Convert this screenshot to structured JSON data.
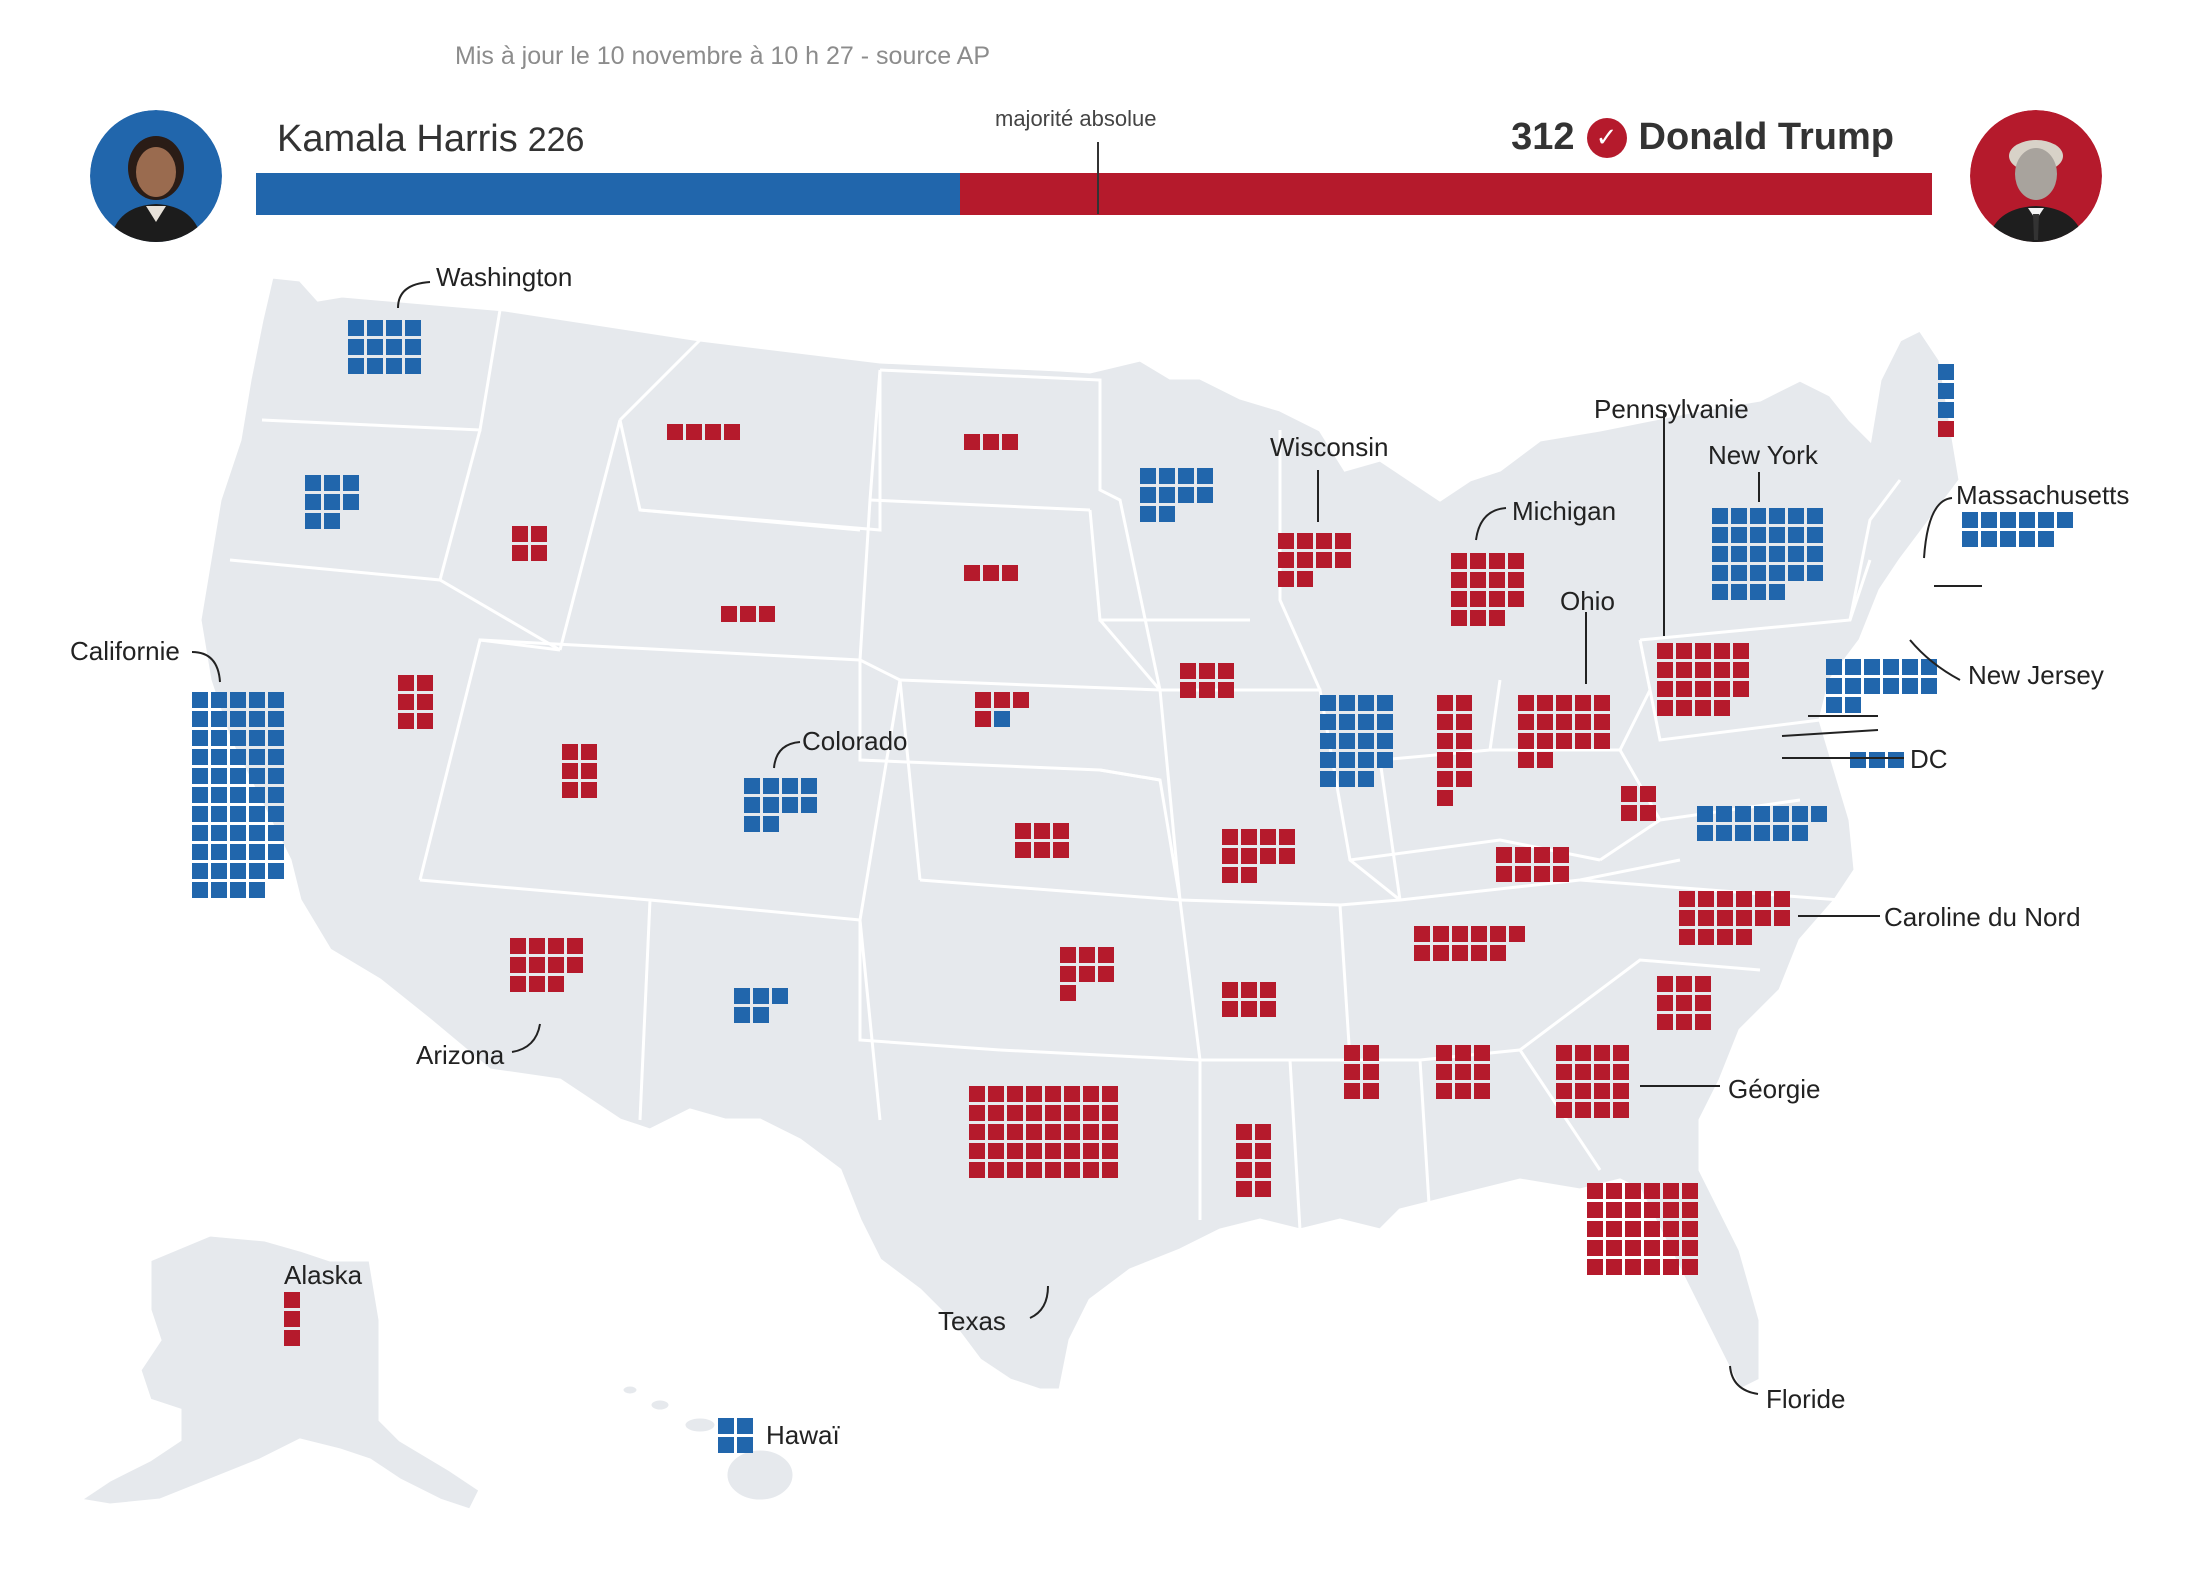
{
  "updated_text": "Mis à jour le 10 novembre à 10 h 27 - source AP",
  "majority_label": "majorité absolue",
  "colors": {
    "democrat": "#2166ac",
    "republican": "#b51a2c",
    "land": "#e6e9ed",
    "border": "#ffffff"
  },
  "candidates": {
    "harris": {
      "name": "Kamala Harris",
      "electoral_votes": "226"
    },
    "trump": {
      "name": "Donald Trump",
      "electoral_votes": "312",
      "winner_icon": "check-circle-icon"
    }
  },
  "results": {
    "harris_votes": 226,
    "trump_votes": 312,
    "total": 538,
    "majority": 270
  },
  "labels": {
    "washington": "Washington",
    "californie": "Californie",
    "colorado": "Colorado",
    "arizona": "Arizona",
    "texas": "Texas",
    "alaska": "Alaska",
    "hawai": "Hawaï",
    "wisconsin": "Wisconsin",
    "michigan": "Michigan",
    "ohio": "Ohio",
    "pennsylvanie": "Pennsylvanie",
    "new_york": "New York",
    "massachusetts": "Massachusetts",
    "new_jersey": "New Jersey",
    "dc": "DC",
    "caroline_du_nord": "Caroline du Nord",
    "georgie": "Géorgie",
    "floride": "Floride"
  },
  "state_results": [
    {
      "state": "Washington",
      "votes": 12,
      "winner": "D"
    },
    {
      "state": "Oregon",
      "votes": 8,
      "winner": "D"
    },
    {
      "state": "Californie",
      "votes": 54,
      "winner": "D"
    },
    {
      "state": "Idaho",
      "votes": 4,
      "winner": "R"
    },
    {
      "state": "Nevada",
      "votes": 6,
      "winner": "R"
    },
    {
      "state": "Montana",
      "votes": 4,
      "winner": "R"
    },
    {
      "state": "Wyoming",
      "votes": 3,
      "winner": "R"
    },
    {
      "state": "Utah",
      "votes": 6,
      "winner": "R"
    },
    {
      "state": "Arizona",
      "votes": 11,
      "winner": "R"
    },
    {
      "state": "Colorado",
      "votes": 10,
      "winner": "D"
    },
    {
      "state": "New Mexico",
      "votes": 5,
      "winner": "D"
    },
    {
      "state": "North Dakota",
      "votes": 3,
      "winner": "R"
    },
    {
      "state": "South Dakota",
      "votes": 3,
      "winner": "R"
    },
    {
      "state": "Nebraska",
      "votes": 5,
      "winner": "R/D",
      "split": {
        "R": 4,
        "D": 1
      }
    },
    {
      "state": "Kansas",
      "votes": 6,
      "winner": "R"
    },
    {
      "state": "Oklahoma",
      "votes": 7,
      "winner": "R"
    },
    {
      "state": "Texas",
      "votes": 40,
      "winner": "R"
    },
    {
      "state": "Minnesota",
      "votes": 10,
      "winner": "D"
    },
    {
      "state": "Iowa",
      "votes": 6,
      "winner": "R"
    },
    {
      "state": "Missouri",
      "votes": 10,
      "winner": "R"
    },
    {
      "state": "Arkansas",
      "votes": 6,
      "winner": "R"
    },
    {
      "state": "Louisiana",
      "votes": 8,
      "winner": "R"
    },
    {
      "state": "Wisconsin",
      "votes": 10,
      "winner": "R"
    },
    {
      "state": "Illinois",
      "votes": 19,
      "winner": "D"
    },
    {
      "state": "Michigan",
      "votes": 15,
      "winner": "R"
    },
    {
      "state": "Indiana",
      "votes": 11,
      "winner": "R"
    },
    {
      "state": "Ohio",
      "votes": 17,
      "winner": "R"
    },
    {
      "state": "Kentucky",
      "votes": 8,
      "winner": "R"
    },
    {
      "state": "Tennessee",
      "votes": 11,
      "winner": "R"
    },
    {
      "state": "Mississippi",
      "votes": 6,
      "winner": "R"
    },
    {
      "state": "Alabama",
      "votes": 9,
      "winner": "R"
    },
    {
      "state": "Géorgie",
      "votes": 16,
      "winner": "R"
    },
    {
      "state": "Floride",
      "votes": 30,
      "winner": "R"
    },
    {
      "state": "Caroline du Sud",
      "votes": 9,
      "winner": "R"
    },
    {
      "state": "Caroline du Nord",
      "votes": 16,
      "winner": "R"
    },
    {
      "state": "Virginie",
      "votes": 13,
      "winner": "D"
    },
    {
      "state": "Virginie-Occidentale",
      "votes": 4,
      "winner": "R"
    },
    {
      "state": "Pennsylvanie",
      "votes": 19,
      "winner": "R"
    },
    {
      "state": "New York",
      "votes": 28,
      "winner": "D"
    },
    {
      "state": "New Jersey",
      "votes": 14,
      "winner": "D"
    },
    {
      "state": "Massachusetts",
      "votes": 11,
      "winner": "D"
    },
    {
      "state": "Maine",
      "votes": 4,
      "winner": "D/R",
      "split": {
        "D": 3,
        "R": 1
      }
    },
    {
      "state": "Alaska",
      "votes": 3,
      "winner": "R"
    },
    {
      "state": "Hawaï",
      "votes": 4,
      "winner": "D"
    },
    {
      "state": "DC",
      "votes": 3,
      "winner": "D"
    }
  ]
}
